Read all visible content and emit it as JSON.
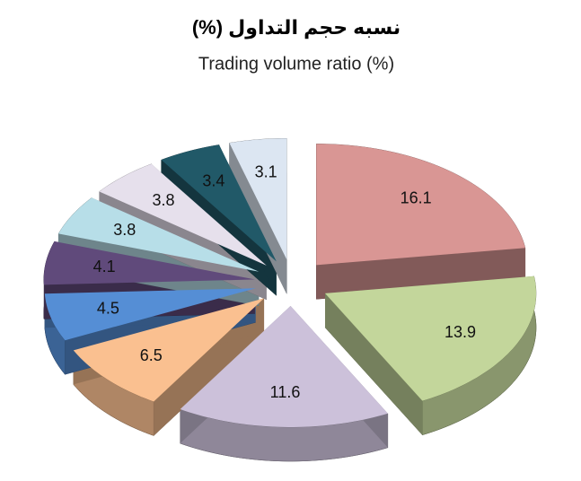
{
  "chart_data": {
    "type": "pie",
    "title": "نسبه حجم التداول (%)",
    "subtitle": "Trading volume ratio (%)",
    "values": [
      16.1,
      13.9,
      11.6,
      6.5,
      4.5,
      4.1,
      3.8,
      3.8,
      3.4,
      3.1
    ],
    "colors": [
      "#d99694",
      "#c3d69b",
      "#ccc1da",
      "#fac090",
      "#558ed5",
      "#604a7b",
      "#b7dee8",
      "#e6e0ec",
      "#215968",
      "#dce6f2"
    ]
  }
}
